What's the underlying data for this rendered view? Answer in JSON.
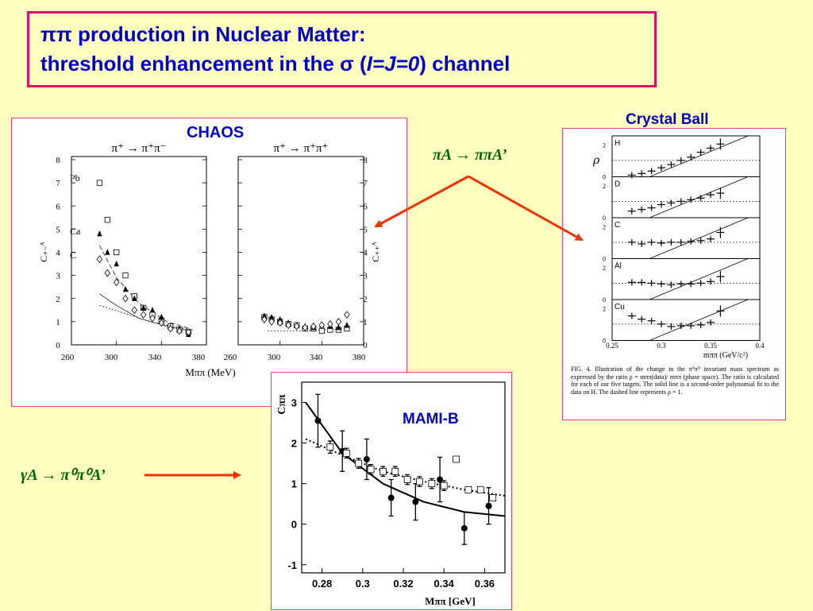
{
  "slide": {
    "title_line1": "ππ production in Nuclear Matter:",
    "title_line2_pre": "threshold enhancement in the σ (",
    "title_line2_ij": "I=J=0",
    "title_line2_post": ") channel"
  },
  "labels": {
    "chaos": "CHAOS",
    "crystal_ball": "Crystal Ball",
    "mami": "MAMI-B",
    "reaction_pion": "πA → ππA’",
    "reaction_gamma": "γA → π⁰π⁰A’"
  },
  "chaos_figure": {
    "left_reaction": "π⁺  →  π⁺π⁻",
    "right_reaction": "π⁺  →  π⁺π⁺",
    "y_label_left": "C₊₋ᴬ",
    "y_label_right": "C₊₊ᴬ",
    "x_label": "Mππ (MeV)",
    "legend": [
      "Pb",
      "Ca",
      "C"
    ],
    "x_ticks": [
      "260",
      "300",
      "340",
      "380",
      "260",
      "300",
      "340",
      "380"
    ],
    "y_ticks": [
      "0",
      "1",
      "2",
      "3",
      "4",
      "5",
      "6",
      "7",
      "8"
    ]
  },
  "crystal_figure": {
    "targets": [
      "H",
      "D",
      "C",
      "Al",
      "Cu"
    ],
    "y_label": "ρ",
    "y_ticks": [
      "2",
      "0"
    ],
    "x_ticks": [
      "0.25",
      "0.3",
      "0.35",
      "0.4"
    ],
    "x_label": "mππ (GeV/c²)",
    "caption": "FIG. 4.  Illustration of the change in the π⁰π⁰ invariant mass spectrum as expressed by the ratio ρ = mππ(data)/ mππ (phase space). The ratio is calculated for each of our five targets. The solid line is a second-order polynomial fit to the data on H.  The dashed line represents ρ = 1."
  },
  "mami_figure": {
    "y_label": "Cππ",
    "x_label": "Mππ  [GeV]",
    "x_ticks": [
      "0.28",
      "0.3",
      "0.32",
      "0.34",
      "0.36"
    ],
    "y_ticks": [
      "3",
      "2",
      "1",
      "0",
      "-1"
    ]
  },
  "chart_data": [
    {
      "type": "scatter",
      "name": "CHAOS pi+ -> pi+ pi-",
      "xlabel": "Mππ (MeV)",
      "ylabel": "C+-A",
      "xlim": [
        260,
        380
      ],
      "ylim": [
        0,
        8
      ],
      "series": [
        {
          "name": "Pb",
          "marker": "open-square",
          "x": [
            285,
            292,
            300,
            308,
            316,
            324,
            332,
            340,
            348,
            356,
            364
          ],
          "y": [
            7.0,
            5.4,
            4.0,
            3.0,
            2.1,
            1.6,
            1.3,
            1.05,
            0.8,
            0.65,
            0.55
          ]
        },
        {
          "name": "Ca",
          "marker": "filled-triangle",
          "x": [
            285,
            292,
            300,
            308,
            316,
            324,
            332,
            340,
            348,
            356,
            364
          ],
          "y": [
            4.8,
            4.0,
            3.5,
            2.4,
            2.0,
            1.6,
            1.5,
            1.2,
            0.75,
            0.7,
            0.45
          ]
        },
        {
          "name": "C",
          "marker": "open-diamond",
          "x": [
            285,
            292,
            300,
            308,
            316,
            324,
            332,
            340,
            348,
            356,
            364
          ],
          "y": [
            3.7,
            3.1,
            2.7,
            2.0,
            1.5,
            1.3,
            1.15,
            0.95,
            0.7,
            0.6,
            0.55
          ]
        }
      ]
    },
    {
      "type": "scatter",
      "name": "CHAOS pi+ -> pi+ pi+",
      "xlabel": "Mππ (MeV)",
      "ylabel": "C++A",
      "xlim": [
        260,
        380
      ],
      "ylim": [
        0,
        8
      ],
      "series": [
        {
          "name": "Pb",
          "marker": "open-square",
          "x": [
            285,
            292,
            300,
            308,
            316,
            324,
            332,
            340,
            348,
            356,
            364
          ],
          "y": [
            1.2,
            1.1,
            1.0,
            0.9,
            0.85,
            0.7,
            0.7,
            0.6,
            0.65,
            0.65,
            0.7
          ]
        },
        {
          "name": "Ca",
          "marker": "filled-triangle",
          "x": [
            285,
            292,
            300,
            308,
            316,
            324,
            332,
            340,
            348,
            356,
            364
          ],
          "y": [
            1.25,
            1.2,
            1.1,
            0.95,
            0.85,
            0.8,
            0.75,
            0.85,
            0.8,
            0.75,
            0.85
          ]
        },
        {
          "name": "C",
          "marker": "open-diamond",
          "x": [
            285,
            292,
            300,
            308,
            316,
            324,
            332,
            340,
            348,
            356,
            364
          ],
          "y": [
            1.1,
            1.0,
            0.95,
            0.85,
            0.8,
            0.75,
            0.8,
            0.85,
            0.9,
            1.0,
            1.3
          ]
        }
      ]
    },
    {
      "type": "scatter",
      "name": "Crystal Ball rho",
      "xlabel": "mππ (GeV/c²)",
      "ylabel": "ρ",
      "xlim": [
        0.25,
        0.4
      ],
      "ylim": [
        0,
        2.5
      ],
      "series": [
        {
          "name": "H",
          "x": [
            0.27,
            0.28,
            0.29,
            0.3,
            0.31,
            0.32,
            0.33,
            0.34,
            0.35,
            0.36
          ],
          "y": [
            0.1,
            0.2,
            0.35,
            0.55,
            0.75,
            1.0,
            1.2,
            1.5,
            1.75,
            2.0
          ]
        },
        {
          "name": "D",
          "x": [
            0.27,
            0.28,
            0.29,
            0.3,
            0.31,
            0.32,
            0.33,
            0.34,
            0.35,
            0.36
          ],
          "y": [
            0.4,
            0.5,
            0.6,
            0.8,
            0.9,
            1.0,
            1.1,
            1.2,
            1.4,
            1.5
          ]
        },
        {
          "name": "C",
          "x": [
            0.27,
            0.28,
            0.29,
            0.3,
            0.31,
            0.32,
            0.33,
            0.34,
            0.35,
            0.36
          ],
          "y": [
            1.0,
            0.9,
            1.0,
            0.95,
            1.0,
            1.0,
            1.05,
            1.1,
            1.2,
            1.6
          ]
        },
        {
          "name": "Al",
          "x": [
            0.27,
            0.28,
            0.29,
            0.3,
            0.31,
            0.32,
            0.33,
            0.34,
            0.35,
            0.36
          ],
          "y": [
            1.05,
            1.05,
            1.0,
            0.95,
            0.9,
            0.95,
            0.95,
            1.0,
            1.1,
            1.4
          ]
        },
        {
          "name": "Cu",
          "x": [
            0.27,
            0.28,
            0.29,
            0.3,
            0.31,
            0.32,
            0.33,
            0.34,
            0.35,
            0.36
          ],
          "y": [
            1.5,
            1.3,
            1.2,
            1.0,
            0.85,
            0.9,
            0.9,
            0.95,
            1.1,
            1.8
          ]
        }
      ]
    },
    {
      "type": "scatter",
      "name": "MAMI-B",
      "xlabel": "Mππ [GeV]",
      "ylabel": "Cππ",
      "xlim": [
        0.27,
        0.37
      ],
      "ylim": [
        -1.2,
        3.5
      ],
      "series": [
        {
          "name": "filled",
          "marker": "filled-circle",
          "x": [
            0.278,
            0.29,
            0.302,
            0.314,
            0.326,
            0.338,
            0.35,
            0.362
          ],
          "y": [
            2.55,
            1.8,
            1.6,
            0.65,
            0.55,
            1.1,
            -0.1,
            0.45
          ],
          "err": [
            0.65,
            0.5,
            0.5,
            0.45,
            0.45,
            0.55,
            0.4,
            0.45
          ]
        },
        {
          "name": "open",
          "marker": "open-square",
          "x": [
            0.284,
            0.292,
            0.298,
            0.304,
            0.31,
            0.316,
            0.322,
            0.328,
            0.334,
            0.34,
            0.346,
            0.352,
            0.358,
            0.364
          ],
          "y": [
            1.9,
            1.75,
            1.5,
            1.35,
            1.3,
            1.3,
            1.1,
            1.05,
            1.0,
            0.95,
            1.6,
            0.85,
            0.85,
            0.65
          ],
          "err": [
            0.15,
            0.12,
            0.12,
            0.12,
            0.12,
            0.12,
            0.12,
            0.12,
            0.12,
            0.12,
            0.0,
            0.0,
            0.0,
            0.0
          ]
        }
      ]
    }
  ]
}
